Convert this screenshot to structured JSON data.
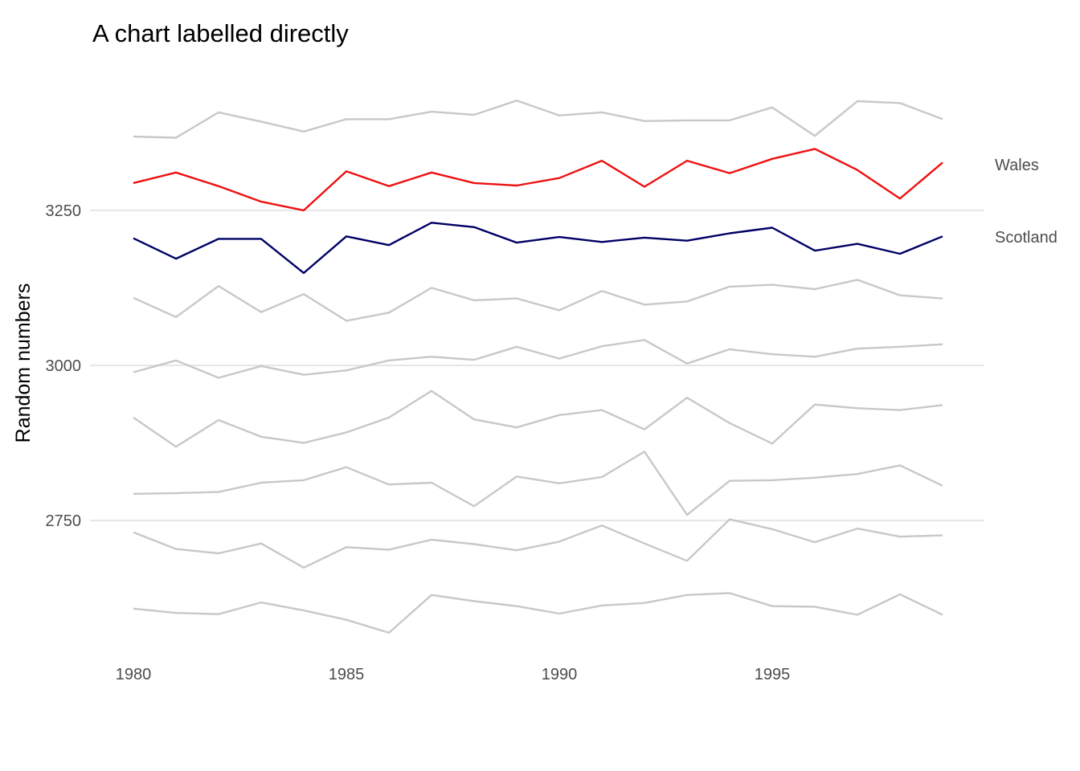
{
  "chart_data": {
    "type": "line",
    "title": "A chart labelled directly",
    "xlabel": "",
    "ylabel": "Random numbers",
    "xlim": [
      1980,
      1999
    ],
    "ylim": [
      2560,
      3450
    ],
    "xticks": [
      1980,
      1985,
      1990,
      1995
    ],
    "yticks": [
      2750,
      3000,
      3250
    ],
    "grid": "horizontal major",
    "legend": "none (series labelled directly at right)",
    "x": [
      1980,
      1981,
      1982,
      1983,
      1984,
      1985,
      1986,
      1987,
      1988,
      1989,
      1990,
      1991,
      1992,
      1993,
      1994,
      1995,
      1996,
      1997,
      1998,
      1999
    ],
    "series": [
      {
        "color": "#c8c8c8",
        "values": [
          3369,
          3367,
          3408,
          3393,
          3377,
          3397,
          3397,
          3409,
          3404,
          3427,
          3403,
          3408,
          3394,
          3395,
          3395,
          3416,
          3370,
          3426,
          3423,
          3397
        ]
      },
      {
        "name": "Wales",
        "color": "#ee1111",
        "values": [
          3294,
          3311,
          3289,
          3264,
          3250,
          3313,
          3289,
          3311,
          3294,
          3290,
          3302,
          3330,
          3288,
          3330,
          3310,
          3333,
          3349,
          3315,
          3269,
          3327
        ]
      },
      {
        "name": "Scotland",
        "color": "#000066",
        "values": [
          3205,
          3172,
          3204,
          3204,
          3149,
          3208,
          3194,
          3230,
          3223,
          3198,
          3207,
          3199,
          3206,
          3201,
          3213,
          3222,
          3185,
          3196,
          3180,
          3208
        ]
      },
      {
        "color": "#c8c8c8",
        "values": [
          3109,
          3078,
          3128,
          3086,
          3115,
          3072,
          3085,
          3125,
          3105,
          3108,
          3089,
          3120,
          3098,
          3103,
          3127,
          3130,
          3123,
          3138,
          3113,
          3108
        ]
      },
      {
        "color": "#c8c8c8",
        "values": [
          2989,
          3008,
          2980,
          2999,
          2985,
          2992,
          3008,
          3014,
          3009,
          3030,
          3011,
          3031,
          3041,
          3003,
          3026,
          3018,
          3014,
          3027,
          3030,
          3034
        ]
      },
      {
        "color": "#c8c8c8",
        "values": [
          2916,
          2869,
          2912,
          2885,
          2875,
          2892,
          2916,
          2959,
          2913,
          2900,
          2920,
          2928,
          2897,
          2948,
          2907,
          2874,
          2937,
          2931,
          2928,
          2936
        ]
      },
      {
        "color": "#c8c8c8",
        "values": [
          2793,
          2794,
          2796,
          2811,
          2815,
          2836,
          2808,
          2811,
          2773,
          2821,
          2810,
          2820,
          2861,
          2759,
          2814,
          2815,
          2819,
          2825,
          2839,
          2806
        ]
      },
      {
        "color": "#c8c8c8",
        "values": [
          2731,
          2704,
          2697,
          2713,
          2674,
          2707,
          2703,
          2719,
          2712,
          2702,
          2716,
          2742,
          2713,
          2685,
          2752,
          2736,
          2715,
          2737,
          2724,
          2726
        ]
      },
      {
        "color": "#c8c8c8",
        "values": [
          2608,
          2601,
          2599,
          2618,
          2605,
          2590,
          2569,
          2630,
          2620,
          2612,
          2600,
          2613,
          2617,
          2630,
          2633,
          2612,
          2611,
          2598,
          2631,
          2598
        ]
      }
    ]
  }
}
